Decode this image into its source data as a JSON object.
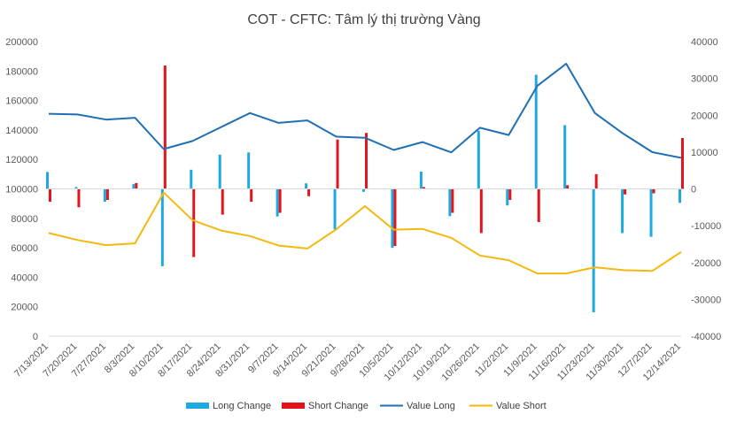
{
  "chart_data": {
    "type": "bar+line",
    "title": "COT - CFTC: Tâm lý thị trường Vàng",
    "categories": [
      "7/13/2021",
      "7/20/2021",
      "7/27/2021",
      "8/3/2021",
      "8/10/2021",
      "8/17/2021",
      "8/24/2021",
      "8/31/2021",
      "9/7/2021",
      "9/14/2021",
      "9/21/2021",
      "9/28/2021",
      "10/5/2021",
      "10/12/2021",
      "10/19/2021",
      "10/26/2021",
      "11/2/2021",
      "11/9/2021",
      "11/16/2021",
      "11/23/2021",
      "11/30/2021",
      "12/7/2021",
      "12/14/2021"
    ],
    "left_axis": {
      "min": 0,
      "max": 200000,
      "step": 20000,
      "ticks": [
        "0",
        "20000",
        "40000",
        "60000",
        "80000",
        "100000",
        "120000",
        "140000",
        "160000",
        "180000",
        "200000"
      ]
    },
    "right_axis": {
      "min": -40000,
      "max": 40000,
      "step": 10000,
      "ticks": [
        "-40000",
        "-30000",
        "-20000",
        "-10000",
        "0",
        "10000",
        "20000",
        "30000",
        "40000"
      ]
    },
    "series": [
      {
        "name": "Long Change",
        "kind": "bar",
        "axis": "right",
        "color": "#1fa9e1",
        "values": [
          4600,
          500,
          -3500,
          1300,
          -21000,
          5200,
          9300,
          9900,
          -7500,
          1500,
          -11000,
          -800,
          -16000,
          4700,
          -7400,
          15800,
          -4500,
          31000,
          17300,
          -33500,
          -12000,
          -13000,
          -3800
        ]
      },
      {
        "name": "Short Change",
        "kind": "bar",
        "axis": "right",
        "color": "#e3141b",
        "values": [
          -3500,
          -5000,
          -3000,
          1600,
          33500,
          -18500,
          -7000,
          -3500,
          -6500,
          -2000,
          13400,
          15200,
          -15500,
          500,
          -6500,
          -12000,
          -3000,
          -9000,
          1000,
          4000,
          -1500,
          -1200,
          13800
        ]
      },
      {
        "name": "Value Long",
        "kind": "line",
        "axis": "left",
        "color": "#1f6fb5",
        "values": [
          151000,
          150500,
          147000,
          148300,
          127000,
          132500,
          142000,
          151500,
          144800,
          146500,
          135500,
          134700,
          126400,
          131800,
          124800,
          141500,
          136600,
          170000,
          185000,
          151500,
          137300,
          124900,
          121100
        ]
      },
      {
        "name": "Value Short",
        "kind": "line",
        "axis": "left",
        "color": "#f5b80f",
        "values": [
          70000,
          65300,
          61800,
          63000,
          97500,
          78800,
          71700,
          68000,
          61500,
          59500,
          72500,
          88300,
          72300,
          72800,
          66800,
          54800,
          51600,
          42600,
          42600,
          46800,
          44800,
          44300,
          57200
        ]
      }
    ],
    "legend": {
      "position": "bottom",
      "entries": [
        "Long Change",
        "Short Change",
        "Value Long",
        "Value Short"
      ]
    },
    "grid": false
  }
}
